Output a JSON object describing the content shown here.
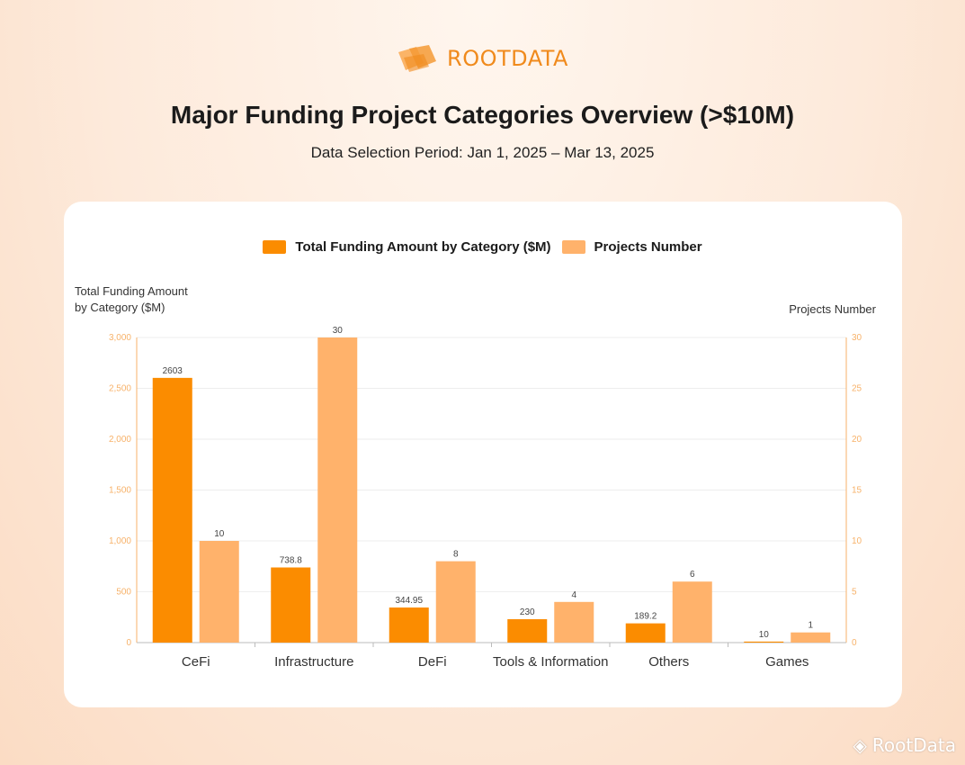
{
  "brand": {
    "logo_text": "ROOTDATA",
    "watermark_text": "RootData"
  },
  "title": "Major Funding Project Categories Overview (>$10M)",
  "subtitle": "Data Selection Period: Jan 1, 2025 – Mar 13, 2025",
  "legend": {
    "series1": "Total Funding Amount by Category ($M)",
    "series2": "Projects Number"
  },
  "colors": {
    "series1": "#fb8c00",
    "series2": "#ffb26b",
    "axis": "#f7b26a",
    "grid": "#eeeeee",
    "brand": "#f08a1c"
  },
  "chart_data": {
    "type": "bar",
    "categories": [
      "CeFi",
      "Infrastructure",
      "DeFi",
      "Tools & Information",
      "Others",
      "Games"
    ],
    "series": [
      {
        "name": "Total Funding Amount by Category ($M)",
        "axis": "left",
        "values": [
          2603,
          738.8,
          344.95,
          230,
          189.2,
          10
        ],
        "labels": [
          "2603",
          "738.8",
          "344.95",
          "230",
          "189.2",
          "10"
        ]
      },
      {
        "name": "Projects Number",
        "axis": "right",
        "values": [
          10,
          30,
          8,
          4,
          6,
          1
        ],
        "labels": [
          "10",
          "30",
          "8",
          "4",
          "6",
          "1"
        ]
      }
    ],
    "ylabel_left": "Total Funding Amount by Category ($M)",
    "ylabel_left_lines": [
      "Total Funding Amount",
      "by Category ($M)"
    ],
    "ylabel_right": "Projects Number",
    "ylim_left": [
      0,
      3000
    ],
    "yticks_left": [
      0,
      500,
      1000,
      1500,
      2000,
      2500,
      3000
    ],
    "yticks_left_labels": [
      "0",
      "500",
      "1,000",
      "1,500",
      "2,000",
      "2,500",
      "3,000"
    ],
    "ylim_right": [
      0,
      30
    ],
    "yticks_right": [
      0,
      5,
      10,
      15,
      20,
      25,
      30
    ],
    "yticks_right_labels": [
      "0",
      "5",
      "10",
      "15",
      "20",
      "25",
      "30"
    ],
    "grid": true,
    "legend_position": "top-center"
  }
}
